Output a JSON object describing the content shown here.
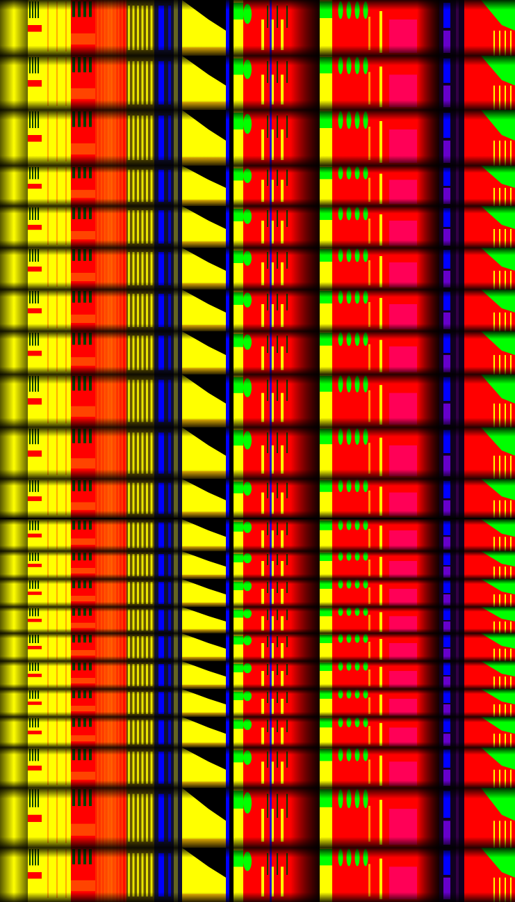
{
  "colors": {
    "background": "#000000",
    "yellow": "#ffff00",
    "red": "#ff0000",
    "green": "#00ff00",
    "dark_green": "#004000",
    "blue": "#0000ff",
    "magenta_red": "#ff0066",
    "orange": "#ff6600"
  },
  "strip_count": 22
}
